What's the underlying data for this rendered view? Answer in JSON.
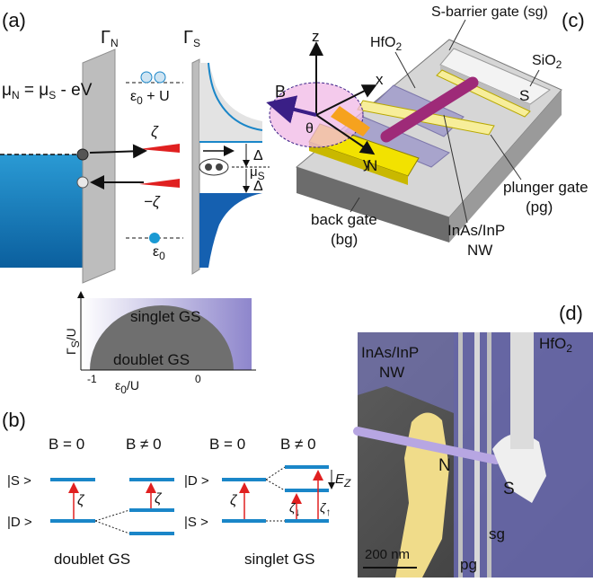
{
  "panel_a": {
    "label": "(a)",
    "gamma_n": "Γ",
    "gamma_n_sub": "N",
    "gamma_s": "Γ",
    "gamma_s_sub": "S",
    "level_upper": "ε",
    "level_upper_sub": "0",
    "level_upper_suffix": " + U",
    "level_lower": "ε",
    "level_lower_sub": "0",
    "mu_n_lhs": "μ",
    "mu_n_lhs_sub": "N",
    "mu_n_eq": " = μ",
    "mu_n_rhs_sub": "S",
    "mu_n_tail": " - eV",
    "zeta_pos": "ζ",
    "zeta_neg": "−ζ",
    "delta_top": "Δ",
    "delta_bottom": "Δ",
    "mu_s": "μ",
    "mu_s_sub": "S",
    "inset": {
      "singlet": "singlet GS",
      "doublet": "doublet GS",
      "ylabel": "Γ",
      "ylabel_sub": "S",
      "ylabel_tail": "/U",
      "xlabel": "ε",
      "xlabel_sub": "0",
      "xlabel_tail": "/U",
      "tick_left": "-1",
      "tick_right": "0"
    }
  },
  "panel_b": {
    "label": "(b)",
    "header_1": "B = 0",
    "header_2": "B ≠ 0",
    "header_3": "B = 0",
    "header_4": "B ≠ 0",
    "state_s_left": "|S >",
    "state_d_left": "|D >",
    "state_d_right": "|D >",
    "state_s_right": "|S >",
    "zeta_1": "ζ",
    "zeta_2": "ζ",
    "zeta_3": "ζ",
    "zeta_down": "ζ",
    "zeta_down_sub": "↓",
    "zeta_up": "ζ",
    "zeta_up_sub": "↑",
    "ez": "E",
    "ez_sub": "Z",
    "caption_left": "doublet GS",
    "caption_right": "singlet GS"
  },
  "panel_c": {
    "label": "(c)",
    "sg_label": "S-barrier gate (sg)",
    "hfo2": "HfO",
    "hfo2_sub": "2",
    "sio2": "SiO",
    "sio2_sub": "2",
    "axis_z": "z",
    "axis_x": "x",
    "axis_y": "y",
    "b_label": "B",
    "theta": "θ",
    "s_label": "S",
    "n_label": "N",
    "plunger_1": "plunger gate",
    "plunger_2": "(pg)",
    "back_gate_1": "back gate",
    "back_gate_2": "(bg)",
    "nw_1": "InAs/InP",
    "nw_2": "NW"
  },
  "panel_d": {
    "label": "(d)",
    "nw_1": "InAs/InP",
    "nw_2": "NW",
    "hfo2": "HfO",
    "hfo2_sub": "2",
    "n_label": "N",
    "s_label": "S",
    "sg": "sg",
    "pg": "pg",
    "scale": "200 nm"
  },
  "colors": {
    "blue_band": "#1f78c0",
    "blue_level": "#1a86c8",
    "red_arrow": "#e02020",
    "barrier_gray": "#bdbdbd",
    "gold": "#f2e200",
    "purple_field": "#f0b8e6",
    "inset_purple": "#9c93cf"
  }
}
